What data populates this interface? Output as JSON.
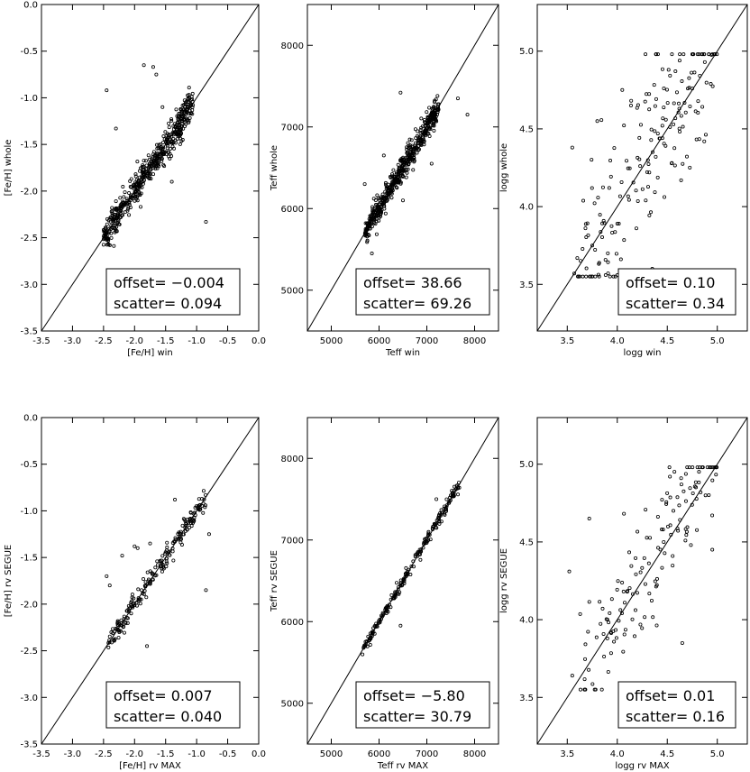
{
  "chart_data": [
    {
      "type": "scatter",
      "xlabel": "[Fe/H] win",
      "ylabel": "[Fe/H] whole",
      "xlim": [
        -3.5,
        0.0
      ],
      "ylim": [
        -3.5,
        0.0
      ],
      "xticks": [
        "-3.5",
        "-3.0",
        "-2.5",
        "-2.0",
        "-1.5",
        "-1.0",
        "-0.5",
        "0.0"
      ],
      "yticks": [
        "-3.5",
        "-3.0",
        "-2.5",
        "-2.0",
        "-1.5",
        "-1.0",
        "-0.5",
        "0.0"
      ],
      "annotation": {
        "offset_label": "offset=",
        "offset_value": "−0.004",
        "scatter_label": "scatter=",
        "scatter_value": "0.094"
      },
      "outliers": [
        [
          -2.45,
          -0.92
        ],
        [
          -1.85,
          -0.65
        ],
        [
          -1.7,
          -0.67
        ],
        [
          -1.65,
          -0.75
        ],
        [
          -2.3,
          -1.33
        ],
        [
          -0.85,
          -2.33
        ],
        [
          -1.55,
          -1.1
        ],
        [
          -1.25,
          -1.13
        ],
        [
          -2.2,
          -2.15
        ],
        [
          -1.95,
          -2.1
        ],
        [
          -1.4,
          -1.9
        ]
      ],
      "cloud": {
        "n": 500,
        "xmin": -2.5,
        "xmax": -1.05,
        "spread": 0.09
      }
    },
    {
      "type": "scatter",
      "xlabel": "Teff win",
      "ylabel": "Teff whole",
      "xlim": [
        4500,
        8500
      ],
      "ylim": [
        4500,
        8500
      ],
      "xticks": [
        "5000",
        "6000",
        "7000",
        "8000"
      ],
      "yticks": [
        "5000",
        "6000",
        "7000",
        "8000"
      ],
      "annotation": {
        "offset_label": "offset=",
        "offset_value": "38.66",
        "scatter_label": "scatter=",
        "scatter_value": "69.26"
      },
      "outliers": [
        [
          6450,
          7420
        ],
        [
          7650,
          7350
        ],
        [
          7850,
          7150
        ],
        [
          6100,
          6650
        ],
        [
          5850,
          5450
        ],
        [
          6500,
          6100
        ],
        [
          7100,
          6550
        ],
        [
          5700,
          6300
        ]
      ],
      "cloud": {
        "n": 520,
        "xmin": 5700,
        "xmax": 7250,
        "spread": 75
      }
    },
    {
      "type": "scatter",
      "xlabel": "logg win",
      "ylabel": "logg whole",
      "xlim": [
        3.2,
        5.3
      ],
      "ylim": [
        3.2,
        5.3
      ],
      "xticks": [
        "3.5",
        "4.0",
        "4.5",
        "5.0"
      ],
      "yticks": [
        "3.5",
        "4.0",
        "4.5",
        "5.0"
      ],
      "annotation": {
        "offset_label": "offset=",
        "offset_value": "0.10",
        "scatter_label": "scatter=",
        "scatter_value": "0.34"
      },
      "outliers": [
        [
          3.57,
          3.57
        ],
        [
          3.75,
          3.75
        ],
        [
          3.8,
          4.55
        ],
        [
          3.55,
          4.38
        ],
        [
          4.05,
          4.75
        ],
        [
          4.35,
          3.6
        ]
      ],
      "cloud": {
        "n": 190,
        "xmin": 3.6,
        "xmax": 5.0,
        "spread": 0.34,
        "ymin": 3.55,
        "ymax": 4.98
      }
    },
    {
      "type": "scatter",
      "xlabel": "[Fe/H] rv MAX",
      "ylabel": "[Fe/H] rv SEGUE",
      "xlim": [
        -3.5,
        0.0
      ],
      "ylim": [
        -3.5,
        0.0
      ],
      "xticks": [
        "-3.5",
        "-3.0",
        "-2.5",
        "-2.0",
        "-1.5",
        "-1.0",
        "-0.5",
        "0.0"
      ],
      "yticks": [
        "-3.5",
        "-3.0",
        "-2.5",
        "-2.0",
        "-1.5",
        "-1.0",
        "-0.5",
        "0.0"
      ],
      "annotation": {
        "offset_label": "offset=",
        "offset_value": "0.007",
        "scatter_label": "scatter=",
        "scatter_value": "0.040"
      },
      "outliers": [
        [
          -2.45,
          -1.7
        ],
        [
          -2.4,
          -1.8
        ],
        [
          -2.2,
          -1.48
        ],
        [
          -2.0,
          -1.38
        ],
        [
          -1.75,
          -1.35
        ],
        [
          -0.85,
          -1.85
        ],
        [
          -0.8,
          -1.25
        ],
        [
          -1.8,
          -2.45
        ],
        [
          -1.95,
          -1.4
        ],
        [
          -1.35,
          -0.88
        ]
      ],
      "cloud": {
        "n": 200,
        "xmin": -2.45,
        "xmax": -0.85,
        "spread": 0.06
      }
    },
    {
      "type": "scatter",
      "xlabel": "Teff rv MAX",
      "ylabel": "Teff rv SEGUE",
      "xlim": [
        4500,
        8500
      ],
      "ylim": [
        4500,
        8500
      ],
      "xticks": [
        "5000",
        "6000",
        "7000",
        "8000"
      ],
      "yticks": [
        "5000",
        "6000",
        "7000",
        "8000"
      ],
      "annotation": {
        "offset_label": "offset=",
        "offset_value": "−5.80",
        "scatter_label": "scatter=",
        "scatter_value": "30.79"
      },
      "outliers": [
        [
          6450,
          5950
        ],
        [
          7200,
          7500
        ]
      ],
      "cloud": {
        "n": 210,
        "xmin": 5650,
        "xmax": 7700,
        "spread": 35
      }
    },
    {
      "type": "scatter",
      "xlabel": "logg rv MAX",
      "ylabel": "logg rv SEGUE",
      "xlim": [
        3.2,
        5.3
      ],
      "ylim": [
        3.2,
        5.3
      ],
      "xticks": [
        "3.5",
        "4.0",
        "4.5",
        "5.0"
      ],
      "yticks": [
        "3.5",
        "4.0",
        "4.5",
        "5.0"
      ],
      "annotation": {
        "offset_label": "offset=",
        "offset_value": "0.01",
        "scatter_label": "scatter=",
        "scatter_value": "0.16"
      },
      "outliers": [
        [
          3.52,
          4.31
        ],
        [
          3.55,
          3.64
        ],
        [
          3.72,
          4.65
        ],
        [
          4.65,
          3.85
        ],
        [
          4.95,
          4.45
        ]
      ],
      "cloud": {
        "n": 150,
        "xmin": 3.62,
        "xmax": 5.0,
        "spread": 0.22,
        "ymin": 3.55,
        "ymax": 4.98
      }
    }
  ]
}
